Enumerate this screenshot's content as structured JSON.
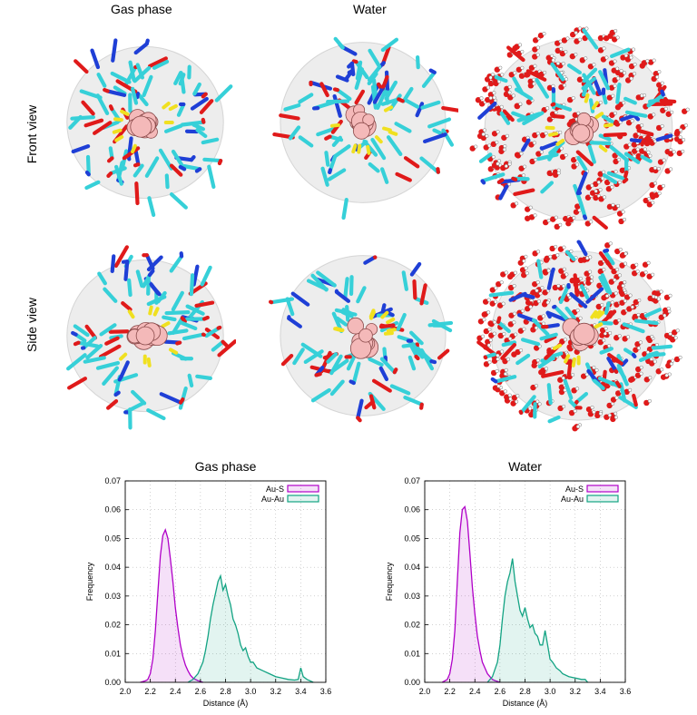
{
  "figure": {
    "column_titles": [
      "Gas phase",
      "Water"
    ],
    "row_labels": [
      "Front view",
      "Side view"
    ],
    "colors": {
      "carbon": "#36d0d8",
      "oxygen": "#e01a1a",
      "nitrogen": "#1f3fd6",
      "sulfur": "#f0e020",
      "gold_core": "#f4b9b9",
      "surface": "#d8d8d8",
      "water_h": "#ffffff"
    },
    "panels": [
      {
        "name": "gas-front",
        "water": false
      },
      {
        "name": "water-front-1",
        "water": false
      },
      {
        "name": "water-front-2",
        "water": true
      },
      {
        "name": "gas-side",
        "water": false
      },
      {
        "name": "water-side-1",
        "water": false
      },
      {
        "name": "water-side-2",
        "water": true
      }
    ]
  },
  "chart_data": [
    {
      "type": "area",
      "title": "Gas phase",
      "xlabel": "Distance (Å)",
      "ylabel": "Frequency",
      "xlim": [
        2.0,
        3.6
      ],
      "ylim": [
        0.0,
        0.07
      ],
      "xticks": [
        "2.0",
        "2.2",
        "2.4",
        "2.6",
        "2.8",
        "3.0",
        "3.2",
        "3.4",
        "3.6"
      ],
      "yticks": [
        "0.00",
        "0.01",
        "0.02",
        "0.03",
        "0.04",
        "0.05",
        "0.06",
        "0.07"
      ],
      "grid": true,
      "legend": "top-right",
      "series": [
        {
          "name": "Au-S",
          "color": "#b000c8",
          "x": [
            2.12,
            2.16,
            2.18,
            2.2,
            2.22,
            2.24,
            2.26,
            2.28,
            2.3,
            2.32,
            2.34,
            2.36,
            2.38,
            2.4,
            2.42,
            2.44,
            2.46,
            2.48,
            2.5,
            2.52,
            2.54,
            2.56,
            2.58,
            2.6,
            2.62
          ],
          "y": [
            0,
            0.0005,
            0.001,
            0.003,
            0.008,
            0.018,
            0.031,
            0.044,
            0.051,
            0.053,
            0.05,
            0.043,
            0.035,
            0.026,
            0.019,
            0.013,
            0.009,
            0.006,
            0.004,
            0.0025,
            0.0015,
            0.001,
            0.0006,
            0.0003,
            0
          ]
        },
        {
          "name": "Au-Au",
          "color": "#13a383",
          "x": [
            2.5,
            2.54,
            2.58,
            2.62,
            2.64,
            2.66,
            2.68,
            2.7,
            2.72,
            2.74,
            2.76,
            2.78,
            2.8,
            2.82,
            2.84,
            2.86,
            2.88,
            2.9,
            2.92,
            2.94,
            2.96,
            2.98,
            3.0,
            3.02,
            3.05,
            3.1,
            3.15,
            3.2,
            3.25,
            3.3,
            3.35,
            3.38,
            3.4,
            3.42,
            3.45,
            3.5
          ],
          "y": [
            0,
            0.001,
            0.003,
            0.007,
            0.011,
            0.016,
            0.022,
            0.027,
            0.031,
            0.035,
            0.037,
            0.032,
            0.034,
            0.03,
            0.027,
            0.022,
            0.02,
            0.017,
            0.013,
            0.011,
            0.012,
            0.009,
            0.007,
            0.007,
            0.005,
            0.004,
            0.003,
            0.002,
            0.0015,
            0.001,
            0.0008,
            0.001,
            0.005,
            0.002,
            0.001,
            0
          ]
        }
      ]
    },
    {
      "type": "area",
      "title": "Water",
      "xlabel": "Distance (Å)",
      "ylabel": "Frequency",
      "xlim": [
        2.0,
        3.6
      ],
      "ylim": [
        0.0,
        0.07
      ],
      "xticks": [
        "2.0",
        "2.2",
        "2.4",
        "2.6",
        "2.8",
        "3.0",
        "3.2",
        "3.4",
        "3.6"
      ],
      "yticks": [
        "0.00",
        "0.01",
        "0.02",
        "0.03",
        "0.04",
        "0.05",
        "0.06",
        "0.07"
      ],
      "grid": true,
      "legend": "top-right",
      "series": [
        {
          "name": "Au-S",
          "color": "#b000c8",
          "x": [
            2.14,
            2.18,
            2.2,
            2.22,
            2.24,
            2.26,
            2.28,
            2.3,
            2.32,
            2.34,
            2.36,
            2.38,
            2.4,
            2.42,
            2.44,
            2.46,
            2.48,
            2.5,
            2.52,
            2.54,
            2.56,
            2.58,
            2.6
          ],
          "y": [
            0,
            0.001,
            0.003,
            0.008,
            0.018,
            0.035,
            0.052,
            0.06,
            0.061,
            0.056,
            0.045,
            0.033,
            0.024,
            0.016,
            0.011,
            0.007,
            0.005,
            0.003,
            0.002,
            0.001,
            0.0006,
            0.0003,
            0
          ]
        },
        {
          "name": "Au-Au",
          "color": "#13a383",
          "x": [
            2.5,
            2.54,
            2.58,
            2.6,
            2.62,
            2.64,
            2.66,
            2.68,
            2.7,
            2.72,
            2.74,
            2.76,
            2.78,
            2.8,
            2.82,
            2.84,
            2.86,
            2.88,
            2.9,
            2.92,
            2.94,
            2.96,
            2.98,
            3.0,
            3.02,
            3.05,
            3.08,
            3.1,
            3.15,
            3.2,
            3.25,
            3.28,
            3.3
          ],
          "y": [
            0,
            0.002,
            0.007,
            0.013,
            0.022,
            0.03,
            0.035,
            0.038,
            0.043,
            0.035,
            0.03,
            0.025,
            0.023,
            0.026,
            0.022,
            0.019,
            0.02,
            0.017,
            0.016,
            0.013,
            0.013,
            0.018,
            0.013,
            0.008,
            0.007,
            0.005,
            0.004,
            0.003,
            0.002,
            0.0015,
            0.001,
            0.001,
            0
          ]
        }
      ]
    }
  ]
}
